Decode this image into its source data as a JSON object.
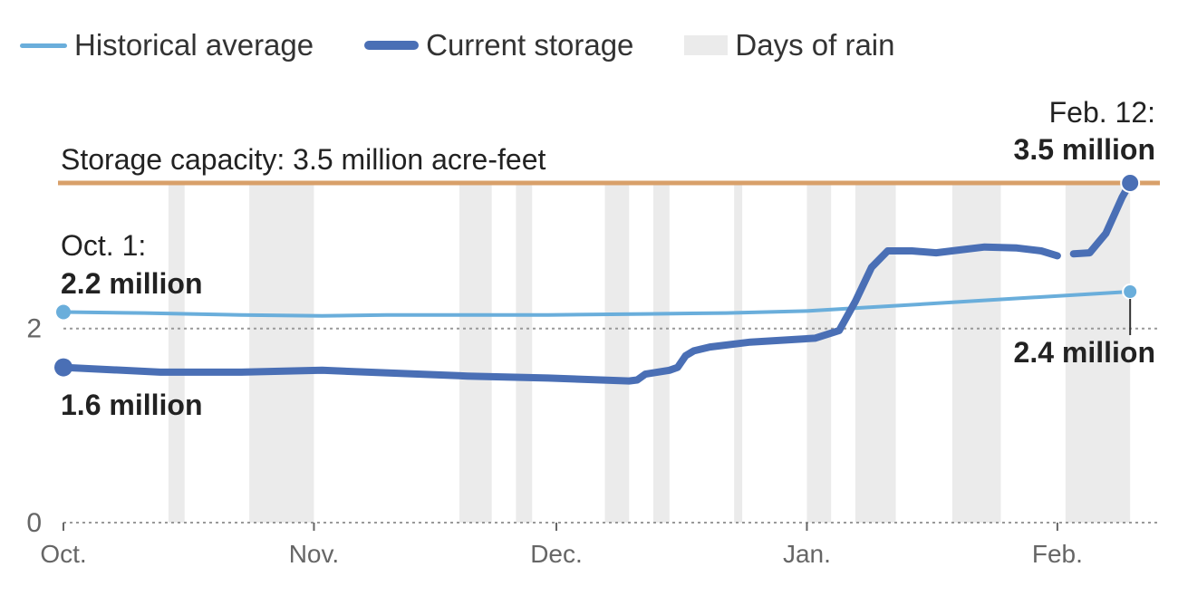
{
  "legend": {
    "historical": "Historical average",
    "current": "Current storage",
    "rain": "Days of rain"
  },
  "colors": {
    "historical": "#6aaedb",
    "current": "#4a6fb5",
    "capacity": "#d8a06a",
    "rain": "#ebebeb",
    "grid": "#999999",
    "text": "#222222",
    "axis_text": "#666666"
  },
  "annotations": {
    "capacity_label": "Storage capacity: 3.5 million acre-feet",
    "start_date": "Oct. 1:",
    "start_hist": "2.2 million",
    "start_current": "1.6 million",
    "end_date": "Feb. 12:",
    "end_current": "3.5 million",
    "end_hist": "2.4 million"
  },
  "chart_data": {
    "type": "line",
    "x_unit": "days since Oct. 1",
    "x_range": [
      0,
      134
    ],
    "ylim": [
      0,
      3.5
    ],
    "y_ticks": [
      0,
      2
    ],
    "x_ticks": [
      {
        "day": 0,
        "label": "Oct."
      },
      {
        "day": 31,
        "label": "Nov."
      },
      {
        "day": 61,
        "label": "Dec."
      },
      {
        "day": 92,
        "label": "Jan."
      },
      {
        "day": 123,
        "label": "Feb."
      }
    ],
    "capacity": 3.5,
    "rain_periods": [
      [
        13,
        15
      ],
      [
        23,
        31
      ],
      [
        49,
        53
      ],
      [
        56,
        58
      ],
      [
        67,
        70
      ],
      [
        73,
        75
      ],
      [
        83,
        84
      ],
      [
        92,
        95
      ],
      [
        98,
        103
      ],
      [
        110,
        116
      ],
      [
        124,
        132
      ]
    ],
    "series": [
      {
        "name": "Historical average",
        "points": [
          [
            0,
            2.17
          ],
          [
            10,
            2.16
          ],
          [
            22,
            2.14
          ],
          [
            32,
            2.13
          ],
          [
            40,
            2.14
          ],
          [
            60,
            2.14
          ],
          [
            72,
            2.15
          ],
          [
            82,
            2.16
          ],
          [
            92,
            2.18
          ],
          [
            100,
            2.22
          ],
          [
            110,
            2.27
          ],
          [
            120,
            2.32
          ],
          [
            132,
            2.38
          ]
        ]
      },
      {
        "name": "Current storage",
        "segments": [
          [
            [
              0,
              1.6
            ],
            [
              12,
              1.55
            ],
            [
              22,
              1.55
            ],
            [
              32,
              1.57
            ],
            [
              50,
              1.51
            ],
            [
              60,
              1.49
            ],
            [
              70,
              1.46
            ],
            [
              71,
              1.47
            ],
            [
              72,
              1.53
            ],
            [
              75,
              1.57
            ],
            [
              76,
              1.6
            ],
            [
              77,
              1.72
            ],
            [
              78,
              1.77
            ],
            [
              80,
              1.81
            ],
            [
              85,
              1.86
            ],
            [
              93,
              1.9
            ],
            [
              96,
              1.98
            ],
            [
              98,
              2.28
            ],
            [
              100,
              2.63
            ],
            [
              102,
              2.8
            ],
            [
              105,
              2.8
            ],
            [
              108,
              2.78
            ],
            [
              111,
              2.81
            ],
            [
              114,
              2.84
            ],
            [
              118,
              2.83
            ],
            [
              121,
              2.8
            ],
            [
              123,
              2.75
            ]
          ],
          [
            [
              125,
              2.77
            ],
            [
              127,
              2.78
            ],
            [
              129,
              2.98
            ],
            [
              131,
              3.35
            ],
            [
              132,
              3.5
            ]
          ]
        ]
      }
    ]
  }
}
